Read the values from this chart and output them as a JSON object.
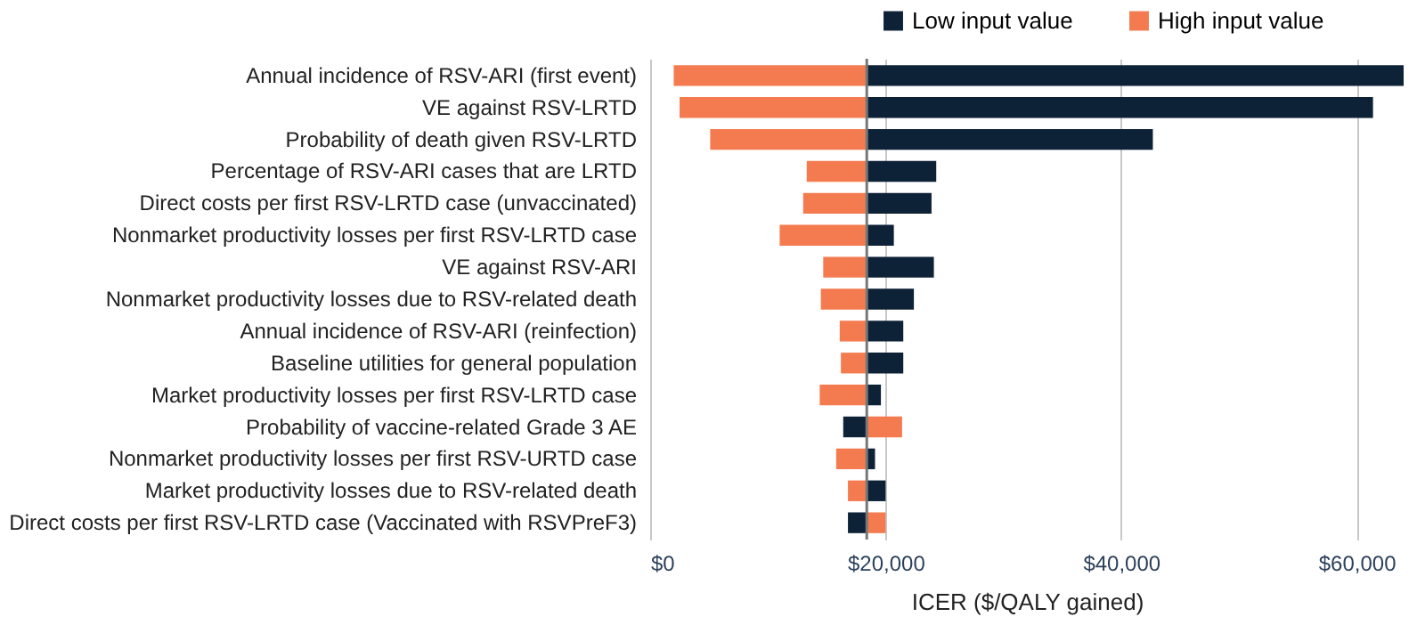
{
  "chart_data": {
    "type": "bar",
    "orientation": "horizontal",
    "xlabel": "ICER ($/QALY gained)",
    "categories": [
      "Annual incidence of RSV-ARI (first event)",
      "VE against RSV-LRTD",
      "Probability of death given RSV-LRTD",
      "Percentage of RSV-ARI cases that are LRTD",
      "Direct costs per first RSV-LRTD case (unvaccinated)",
      "Nonmarket productivity losses per first RSV-LRTD case",
      "VE against RSV-ARI",
      "Nonmarket productivity losses due to RSV-related death",
      "Annual incidence of RSV-ARI (reinfection)",
      "Baseline utilities for general population",
      "Market productivity losses per first RSV-LRTD case",
      "Probability of vaccine-related Grade 3 AE",
      "Nonmarket productivity losses per first RSV-URTD case",
      "Market productivity losses due to RSV-related death",
      "Direct costs per first RSV-LRTD case (Vaccinated with RSVPreF3)"
    ],
    "series": [
      {
        "name": "Low input value",
        "color": "#0d2137",
        "base": [
          18400,
          18400,
          18400,
          18400,
          18400,
          18400,
          18400,
          18400,
          18400,
          18400,
          18400,
          18400,
          18400,
          18400,
          18400
        ],
        "values": [
          45600,
          43000,
          24300,
          5900,
          5500,
          2300,
          5700,
          4000,
          3100,
          3100,
          1200,
          -2000,
          700,
          1600,
          -1600
        ]
      },
      {
        "name": "High input value",
        "color": "#f47b50",
        "base": [
          18400,
          18400,
          18400,
          18400,
          18400,
          18400,
          18400,
          18400,
          18400,
          18400,
          18400,
          18400,
          18400,
          18400,
          18400
        ],
        "values": [
          -16400,
          -15900,
          -13300,
          -5100,
          -5400,
          -7400,
          -3700,
          -3900,
          -2300,
          -2200,
          -4000,
          3000,
          -2600,
          -1600,
          1600
        ]
      }
    ],
    "xlim": [
      0,
      64000
    ],
    "xticks": [
      {
        "value": 0,
        "label": "$0"
      },
      {
        "value": 20000,
        "label": "$20,000"
      },
      {
        "value": 40000,
        "label": "$40,000"
      },
      {
        "value": 60000,
        "label": "$60,000"
      }
    ],
    "ref_lines": [
      {
        "axis": "x",
        "value": 18400,
        "label": null,
        "color": "#777777"
      }
    ],
    "grid": "x",
    "legend": "top right"
  }
}
